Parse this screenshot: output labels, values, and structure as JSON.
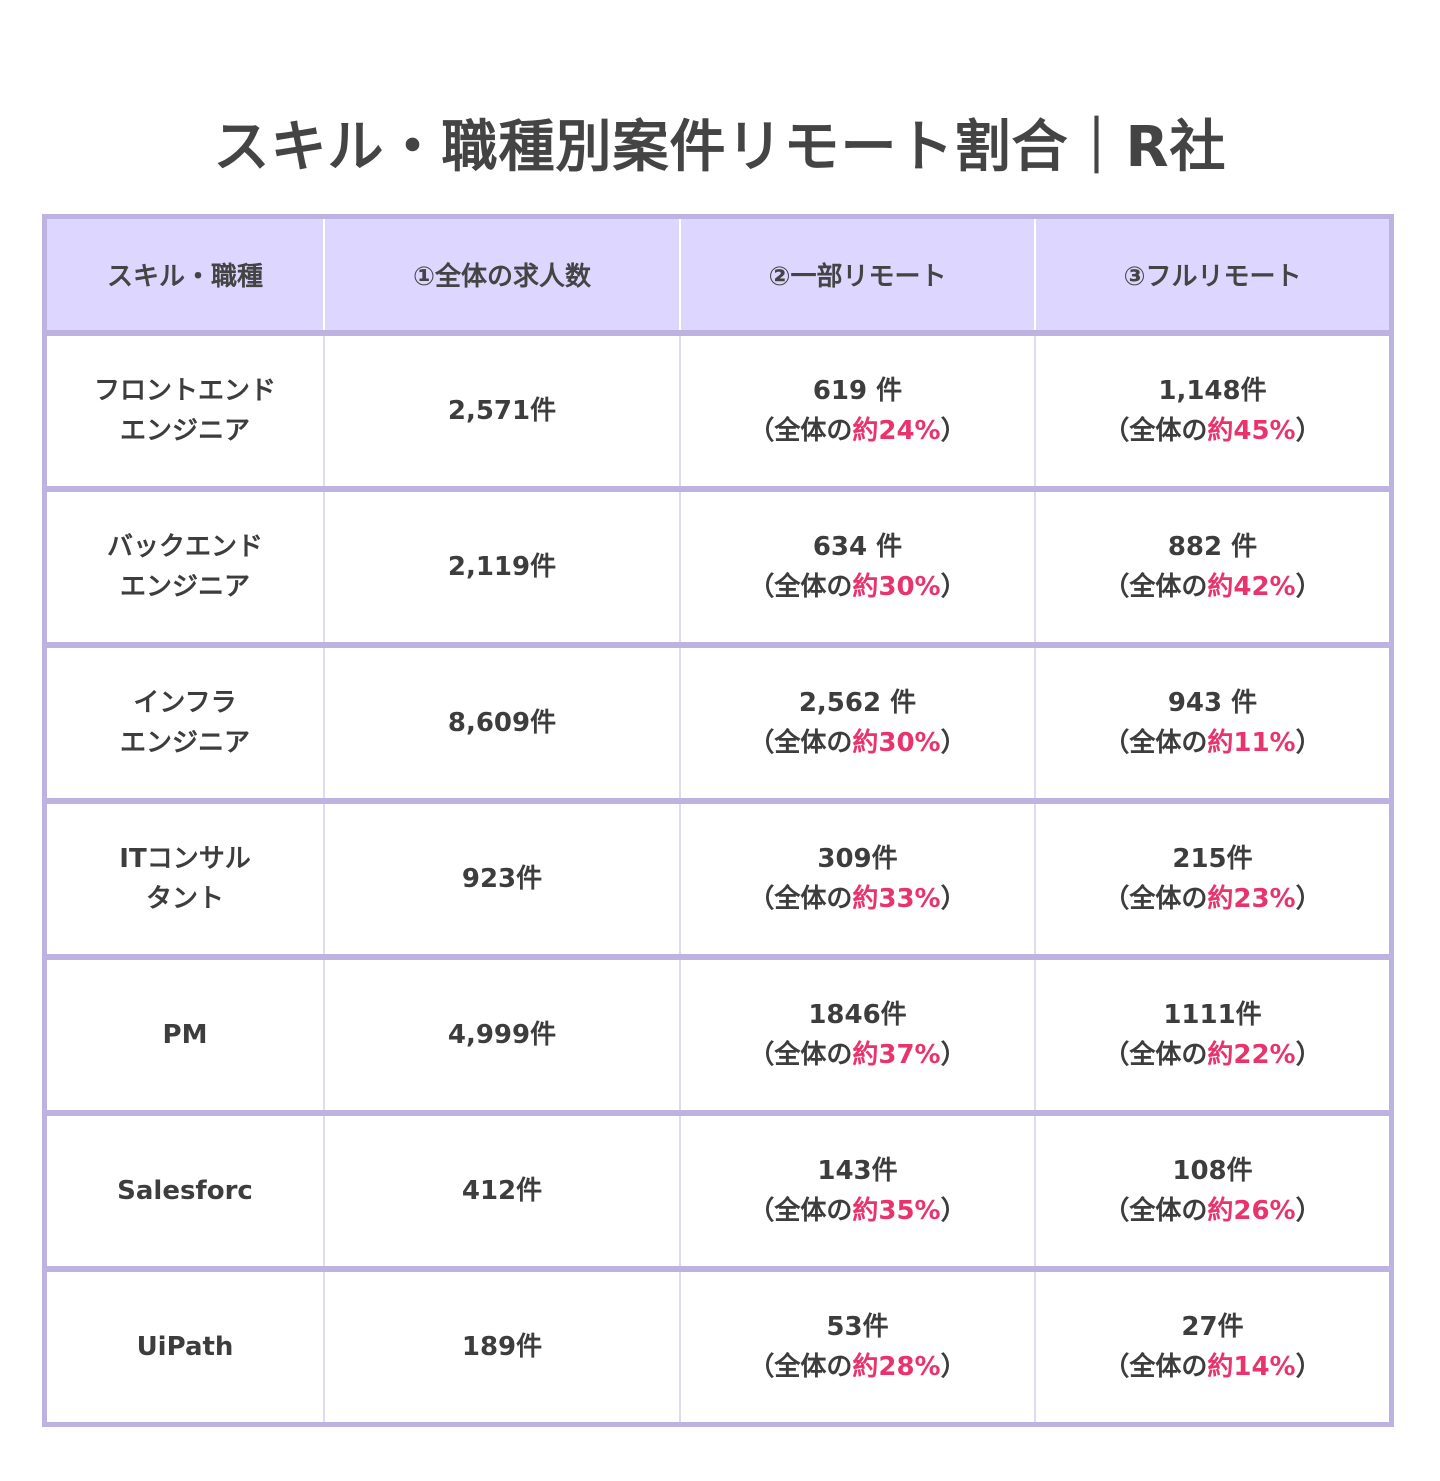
{
  "title": "スキル・職種別案件リモート割合｜R社",
  "headers": [
    "スキル・職種",
    "①全体の求人数",
    "②一部リモート",
    "③フルリモート"
  ],
  "pct_prefix": "（全体の",
  "pct_suffix": "）",
  "colors": {
    "border": "#bdb2e0",
    "header_bg": "#ddd7ff",
    "highlight": "#e8336d",
    "text": "#3d3d3d"
  },
  "rows": [
    {
      "skill_lines": [
        "フロントエンド",
        "エンジニア"
      ],
      "total": "2,571件",
      "partial_count": "619 件",
      "partial_pct": "約24%",
      "full_count": "1,148件",
      "full_pct": "約45%"
    },
    {
      "skill_lines": [
        "バックエンド",
        "エンジニア"
      ],
      "total": "2,119件",
      "partial_count": "634 件",
      "partial_pct": "約30%",
      "full_count": "882 件",
      "full_pct": "約42%"
    },
    {
      "skill_lines": [
        "インフラ",
        "エンジニア"
      ],
      "total": "8,609件",
      "partial_count": "2,562 件",
      "partial_pct": "約30%",
      "full_count": "943 件",
      "full_pct": "約11%"
    },
    {
      "skill_lines": [
        "ITコンサル",
        "タント"
      ],
      "total": "923件",
      "partial_count": "309件",
      "partial_pct": "約33%",
      "full_count": "215件",
      "full_pct": "約23%"
    },
    {
      "skill_lines": [
        "PM"
      ],
      "total": "4,999件",
      "partial_count": "1846件",
      "partial_pct": "約37%",
      "full_count": "1111件",
      "full_pct": "約22%"
    },
    {
      "skill_lines": [
        "Salesforc"
      ],
      "total": "412件",
      "partial_count": "143件",
      "partial_pct": "約35%",
      "full_count": "108件",
      "full_pct": "約26%"
    },
    {
      "skill_lines": [
        "UiPath"
      ],
      "total": "189件",
      "partial_count": "53件",
      "partial_pct": "約28%",
      "full_count": "27件",
      "full_pct": "約14%"
    }
  ]
}
